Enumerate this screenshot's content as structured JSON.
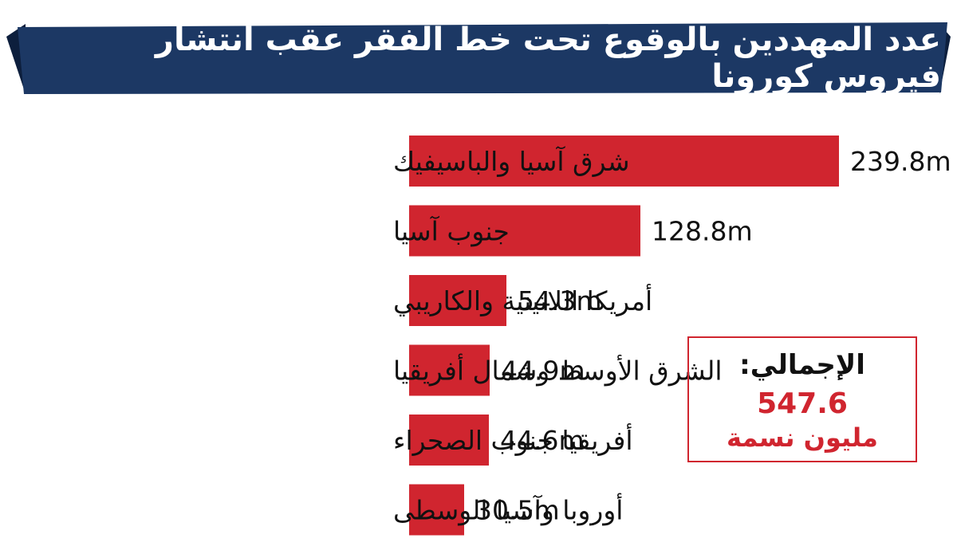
{
  "colors": {
    "banner": "#1c3864",
    "banner_shadow": "#0d1f3d",
    "bar": "#d0252f",
    "total_accent": "#d0252f"
  },
  "chart_data": {
    "type": "bar",
    "orientation": "horizontal",
    "title": "عدد المهددين بالوقوع تحت خط الفقر عقب انتشار فيروس كورونا",
    "categories": [
      "شرق آسيا والباسيفيك",
      "جنوب آسيا",
      "أمريكا اللاتينية والكاريبي",
      "الشرق الأوسط وشمال أفريقيا",
      "أفريقيا جنوب الصحراء",
      "أوروبا وآسيا الوسطى"
    ],
    "values": [
      239.8,
      128.8,
      54.3,
      44.9,
      44.6,
      30.5
    ],
    "value_labels": [
      "239.8m",
      "128.8m",
      "54.3m",
      "44.9m",
      "44.6m",
      "30.5m"
    ],
    "xlim": [
      0,
      239.8
    ],
    "grid": false,
    "legend": "none"
  },
  "total": {
    "label": "الإجمالي:",
    "value": "547.6",
    "unit": "مليون نسمة"
  }
}
